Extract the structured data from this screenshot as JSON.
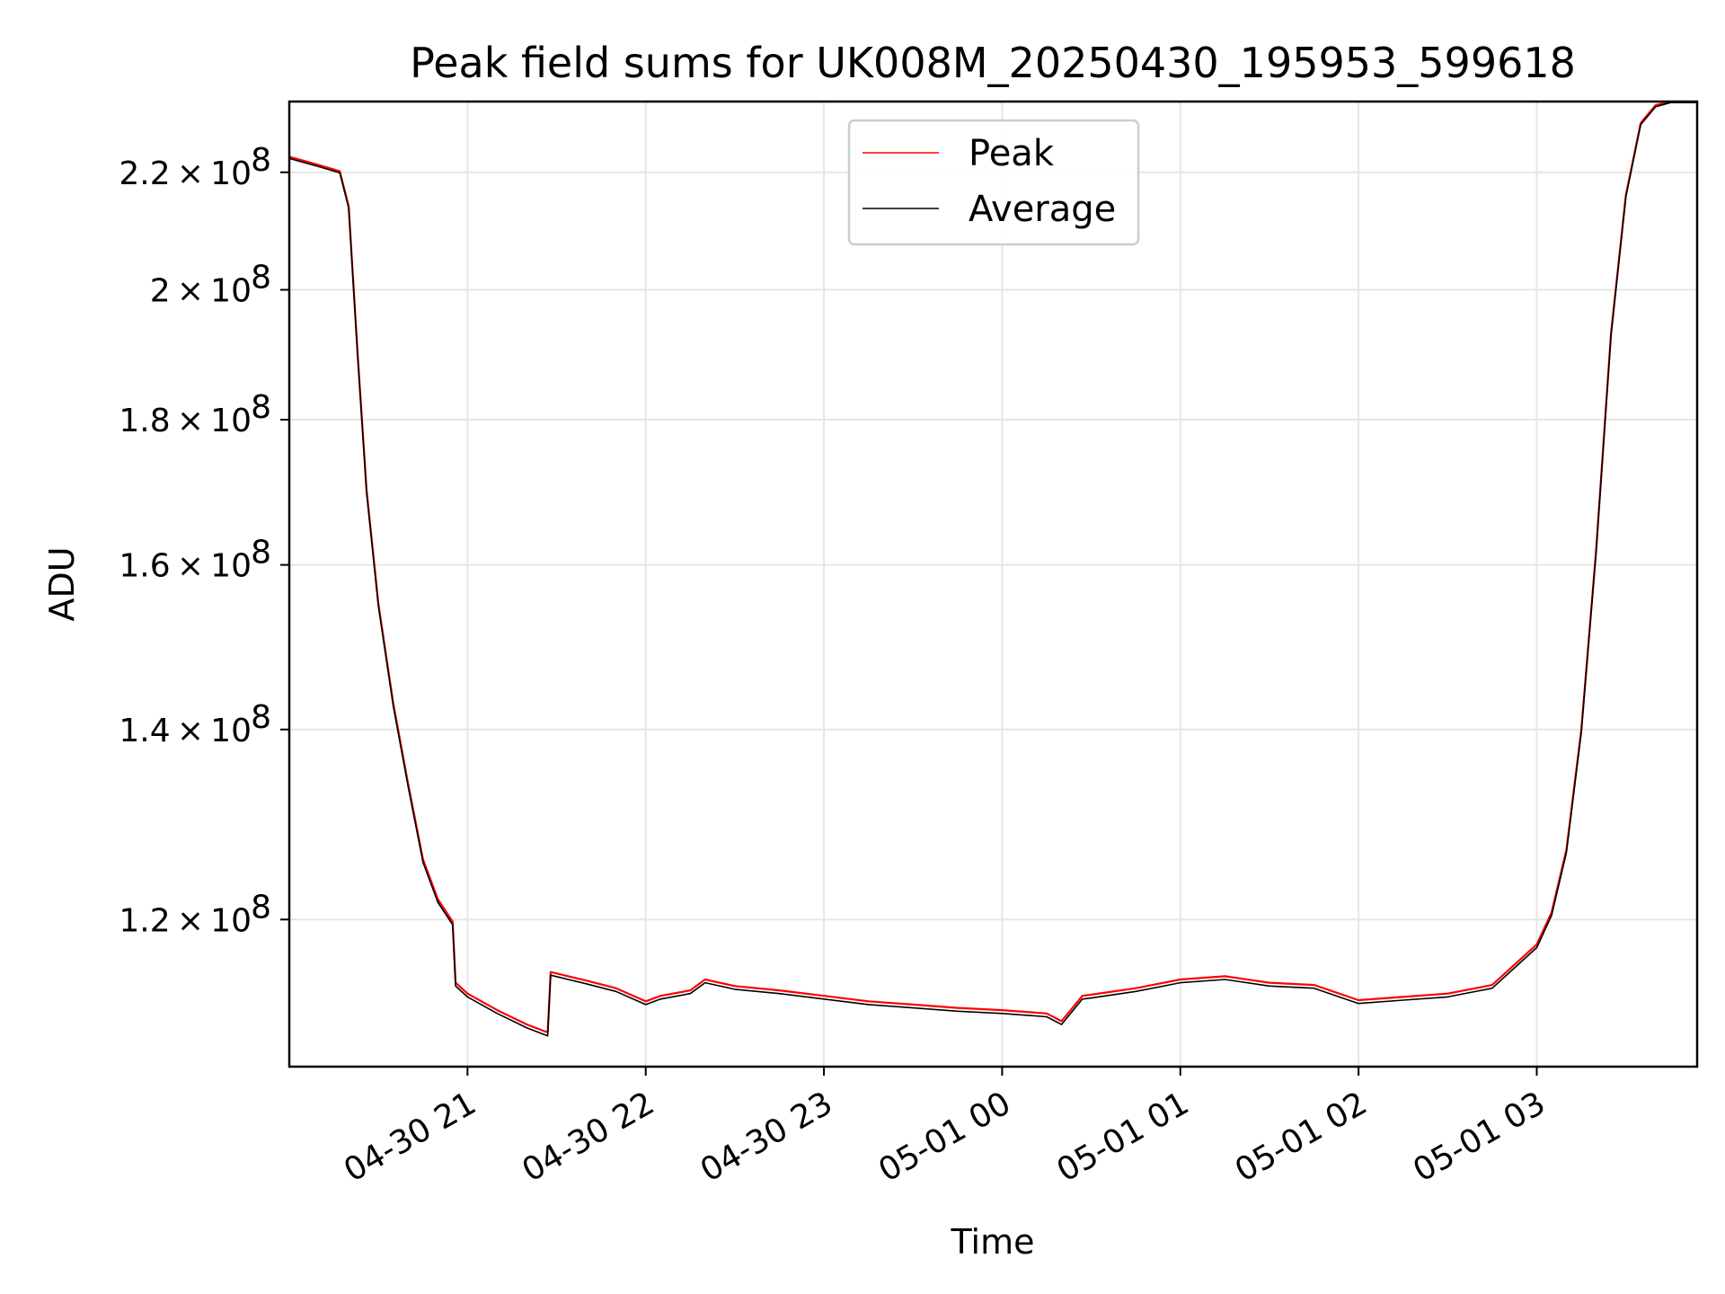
{
  "chart_data": {
    "type": "line",
    "title": "Peak field sums for UK008M_20250430_195953_599618",
    "xlabel": "Time",
    "ylabel": "ADU",
    "y_scale": "log",
    "xlim": [
      "2025-04-30 20:00",
      "2025-05-01 03:54"
    ],
    "ylim": [
      106500000,
      233000000
    ],
    "grid": true,
    "legend_position": "upper center",
    "x_tick_labels": [
      "04-30 21",
      "04-30 22",
      "04-30 23",
      "05-01 00",
      "05-01 01",
      "05-01 02",
      "05-01 03"
    ],
    "x_tick_times": [
      "2025-04-30 21:00",
      "2025-04-30 22:00",
      "2025-04-30 23:00",
      "2025-05-01 00:00",
      "2025-05-01 01:00",
      "2025-05-01 02:00",
      "2025-05-01 03:00"
    ],
    "y_ticks": [
      {
        "value": 120000000,
        "mantissa": "1.2",
        "exp": "8"
      },
      {
        "value": 140000000,
        "mantissa": "1.4",
        "exp": "8"
      },
      {
        "value": 160000000,
        "mantissa": "1.6",
        "exp": "8"
      },
      {
        "value": 180000000,
        "mantissa": "1.8",
        "exp": "8"
      },
      {
        "value": 200000000,
        "mantissa": "2",
        "exp": "8"
      },
      {
        "value": 220000000,
        "mantissa": "2.2",
        "exp": "8"
      }
    ],
    "series": [
      {
        "name": "Peak",
        "color": "#ff0000",
        "x": [
          "2025-04-30 20:00",
          "2025-04-30 20:10",
          "2025-04-30 20:17",
          "2025-04-30 20:20",
          "2025-04-30 20:23",
          "2025-04-30 20:26",
          "2025-04-30 20:30",
          "2025-04-30 20:35",
          "2025-04-30 20:40",
          "2025-04-30 20:45",
          "2025-04-30 20:50",
          "2025-04-30 20:55",
          "2025-04-30 20:56",
          "2025-04-30 21:00",
          "2025-04-30 21:10",
          "2025-04-30 21:20",
          "2025-04-30 21:27",
          "2025-04-30 21:28",
          "2025-04-30 21:40",
          "2025-04-30 21:50",
          "2025-04-30 22:00",
          "2025-04-30 22:05",
          "2025-04-30 22:15",
          "2025-04-30 22:20",
          "2025-04-30 22:30",
          "2025-04-30 22:45",
          "2025-04-30 23:00",
          "2025-04-30 23:15",
          "2025-04-30 23:30",
          "2025-04-30 23:45",
          "2025-05-01 00:00",
          "2025-05-01 00:15",
          "2025-05-01 00:20",
          "2025-05-01 00:27",
          "2025-05-01 00:30",
          "2025-05-01 00:45",
          "2025-05-01 01:00",
          "2025-05-01 01:15",
          "2025-05-01 01:30",
          "2025-05-01 01:45",
          "2025-05-01 02:00",
          "2025-05-01 02:15",
          "2025-05-01 02:30",
          "2025-05-01 02:45",
          "2025-05-01 03:00",
          "2025-05-01 03:05",
          "2025-05-01 03:10",
          "2025-05-01 03:15",
          "2025-05-01 03:20",
          "2025-05-01 03:25",
          "2025-05-01 03:30",
          "2025-05-01 03:35",
          "2025-05-01 03:40",
          "2025-05-01 03:45",
          "2025-05-01 03:54"
        ],
        "y": [
          222800000,
          221300000,
          220200000,
          214000000,
          190000000,
          170000000,
          155000000,
          143000000,
          134000000,
          126000000,
          122000000,
          119800000,
          114000000,
          113000000,
          111500000,
          110200000,
          109500000,
          115000000,
          114200000,
          113500000,
          112300000,
          112800000,
          113300000,
          114300000,
          113700000,
          113300000,
          112800000,
          112300000,
          112000000,
          111700000,
          111500000,
          111200000,
          110500000,
          112800000,
          112900000,
          113500000,
          114300000,
          114600000,
          114000000,
          113800000,
          112400000,
          112700000,
          113000000,
          113800000,
          117600000,
          120700000,
          127000000,
          140000000,
          162000000,
          193000000,
          216000000,
          229000000,
          232300000,
          233000000,
          233000000
        ]
      },
      {
        "name": "Average",
        "color": "#000000",
        "x": [
          "2025-04-30 20:00",
          "2025-04-30 20:10",
          "2025-04-30 20:17",
          "2025-04-30 20:20",
          "2025-04-30 20:23",
          "2025-04-30 20:26",
          "2025-04-30 20:30",
          "2025-04-30 20:35",
          "2025-04-30 20:40",
          "2025-04-30 20:45",
          "2025-04-30 20:50",
          "2025-04-30 20:55",
          "2025-04-30 20:56",
          "2025-04-30 21:00",
          "2025-04-30 21:10",
          "2025-04-30 21:20",
          "2025-04-30 21:27",
          "2025-04-30 21:28",
          "2025-04-30 21:40",
          "2025-04-30 21:50",
          "2025-04-30 22:00",
          "2025-04-30 22:05",
          "2025-04-30 22:15",
          "2025-04-30 22:20",
          "2025-04-30 22:30",
          "2025-04-30 22:45",
          "2025-04-30 23:00",
          "2025-04-30 23:15",
          "2025-04-30 23:30",
          "2025-04-30 23:45",
          "2025-05-01 00:00",
          "2025-05-01 00:15",
          "2025-05-01 00:20",
          "2025-05-01 00:27",
          "2025-05-01 00:30",
          "2025-05-01 00:45",
          "2025-05-01 01:00",
          "2025-05-01 01:15",
          "2025-05-01 01:30",
          "2025-05-01 01:45",
          "2025-05-01 02:00",
          "2025-05-01 02:15",
          "2025-05-01 02:30",
          "2025-05-01 02:45",
          "2025-05-01 03:00",
          "2025-05-01 03:05",
          "2025-05-01 03:10",
          "2025-05-01 03:15",
          "2025-05-01 03:20",
          "2025-05-01 03:25",
          "2025-05-01 03:30",
          "2025-05-01 03:35",
          "2025-05-01 03:40",
          "2025-05-01 03:45",
          "2025-05-01 03:54"
        ],
        "y": [
          222500000,
          221000000,
          219900000,
          213700000,
          189700000,
          169700000,
          154700000,
          142700000,
          133700000,
          125700000,
          121700000,
          119500000,
          113700000,
          112700000,
          111200000,
          109900000,
          109200000,
          114700000,
          113900000,
          113200000,
          112000000,
          112500000,
          113000000,
          114000000,
          113400000,
          113000000,
          112500000,
          112000000,
          111700000,
          111400000,
          111200000,
          110900000,
          110200000,
          112500000,
          112600000,
          113200000,
          114000000,
          114300000,
          113700000,
          113500000,
          112100000,
          112400000,
          112700000,
          113500000,
          117300000,
          120400000,
          126700000,
          139700000,
          161700000,
          192700000,
          215700000,
          228700000,
          232000000,
          232800000,
          232800000
        ]
      }
    ]
  }
}
